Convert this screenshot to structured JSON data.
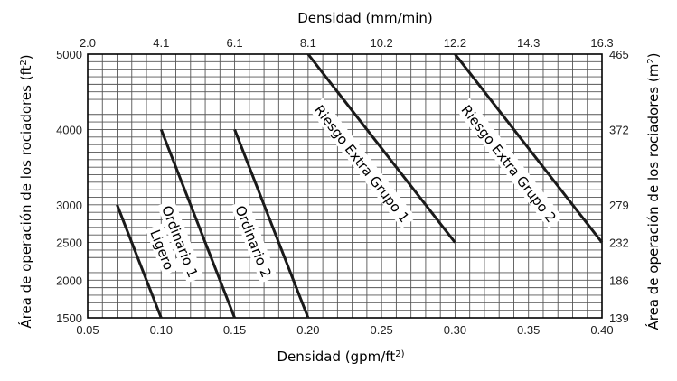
{
  "chart_data": {
    "type": "line",
    "title_top": "Densidad (mm/min)",
    "xlabel": "Densidad (gpm/ft",
    "xlabel_sup": "2)",
    "ylabel_left": "Área de operación de los rociadores (ft",
    "ylabel_left_sup": "2",
    "ylabel_right": "Área de operación de los rociadores (m",
    "ylabel_right_sup": "2",
    "xlim": [
      0.05,
      0.4
    ],
    "ylim": [
      1500,
      5000
    ],
    "x_ticks_bottom": [
      "0.05",
      "0.10",
      "0.15",
      "0.20",
      "0.25",
      "0.30",
      "0.35",
      "0.40"
    ],
    "x_ticks_top": [
      "2.0",
      "4.1",
      "6.1",
      "8.1",
      "10.2",
      "12.2",
      "14.3",
      "16.3"
    ],
    "y_ticks_left": [
      {
        "value": 5000,
        "label": "5000"
      },
      {
        "value": 4000,
        "label": "4000"
      },
      {
        "value": 3000,
        "label": "3000"
      },
      {
        "value": 2500,
        "label": "2500"
      },
      {
        "value": 2000,
        "label": "2000"
      },
      {
        "value": 1500,
        "label": "1500"
      }
    ],
    "y_ticks_right": [
      {
        "value": 5000,
        "label": "465"
      },
      {
        "value": 4000,
        "label": "372"
      },
      {
        "value": 3000,
        "label": "279"
      },
      {
        "value": 2500,
        "label": "232"
      },
      {
        "value": 2000,
        "label": "186"
      },
      {
        "value": 1500,
        "label": "139"
      }
    ],
    "grid": true,
    "series": [
      {
        "name": "Ligero",
        "x": [
          0.07,
          0.1
        ],
        "y": [
          3000,
          1500
        ]
      },
      {
        "name": "Ordinario 1",
        "x": [
          0.1,
          0.15
        ],
        "y": [
          4000,
          1500
        ]
      },
      {
        "name": "Ordinario 2",
        "x": [
          0.15,
          0.2
        ],
        "y": [
          4000,
          1500
        ]
      },
      {
        "name": "Riesgo Extra Grupo 1",
        "x": [
          0.2,
          0.3
        ],
        "y": [
          5000,
          2500
        ]
      },
      {
        "name": "Riesgo Extra Grupo 2",
        "x": [
          0.3,
          0.4
        ],
        "y": [
          5000,
          2500
        ]
      }
    ]
  }
}
